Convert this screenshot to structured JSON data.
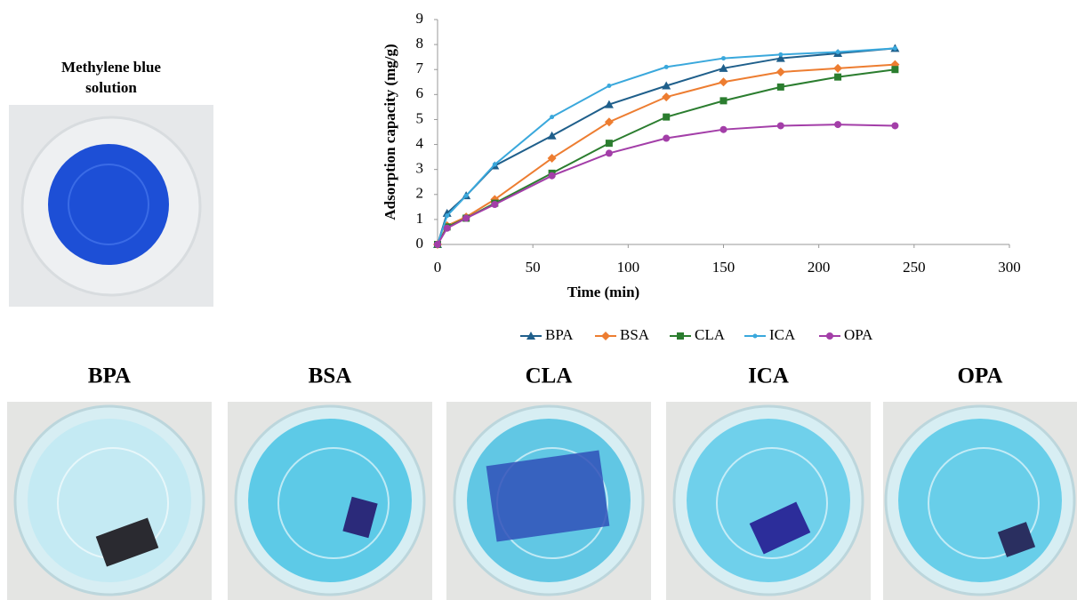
{
  "chart_data": {
    "type": "line",
    "xlabel": "Time (min)",
    "ylabel": "Adsorption capacity (mg/g)",
    "x": [
      0,
      5,
      15,
      30,
      60,
      90,
      120,
      150,
      180,
      210,
      240
    ],
    "series": [
      {
        "name": "BPA",
        "color": "#1f5f8b",
        "marker": "triangle",
        "values": [
          0,
          1.25,
          1.95,
          3.15,
          4.35,
          5.6,
          6.35,
          7.05,
          7.45,
          7.65,
          7.85
        ]
      },
      {
        "name": "BSA",
        "color": "#ed7d31",
        "marker": "diamond",
        "values": [
          0,
          0.75,
          1.1,
          1.8,
          3.45,
          4.9,
          5.9,
          6.5,
          6.9,
          7.05,
          7.2
        ]
      },
      {
        "name": "CLA",
        "color": "#2b7d2f",
        "marker": "square",
        "values": [
          0,
          0.7,
          1.05,
          1.65,
          2.85,
          4.05,
          5.1,
          5.75,
          6.3,
          6.7,
          7.0
        ]
      },
      {
        "name": "ICA",
        "color": "#3aa8dc",
        "marker": "dot",
        "values": [
          0,
          1.15,
          1.95,
          3.2,
          5.1,
          6.35,
          7.1,
          7.45,
          7.6,
          7.7,
          7.85
        ]
      },
      {
        "name": "OPA",
        "color": "#a33ea8",
        "marker": "circle",
        "values": [
          0,
          0.65,
          1.05,
          1.6,
          2.75,
          3.65,
          4.25,
          4.6,
          4.75,
          4.8,
          4.75
        ]
      }
    ],
    "xlim": [
      0,
      300
    ],
    "xticks": [
      0,
      50,
      100,
      150,
      200,
      250,
      300
    ],
    "ylim": [
      0,
      9
    ],
    "yticks": [
      0,
      1,
      2,
      3,
      4,
      5,
      6,
      7,
      8,
      9
    ],
    "legend": "bottom"
  },
  "photos": {
    "solution_caption": "Methylene blue solution",
    "labels": [
      "BPA",
      "BSA",
      "CLA",
      "ICA",
      "OPA"
    ]
  }
}
